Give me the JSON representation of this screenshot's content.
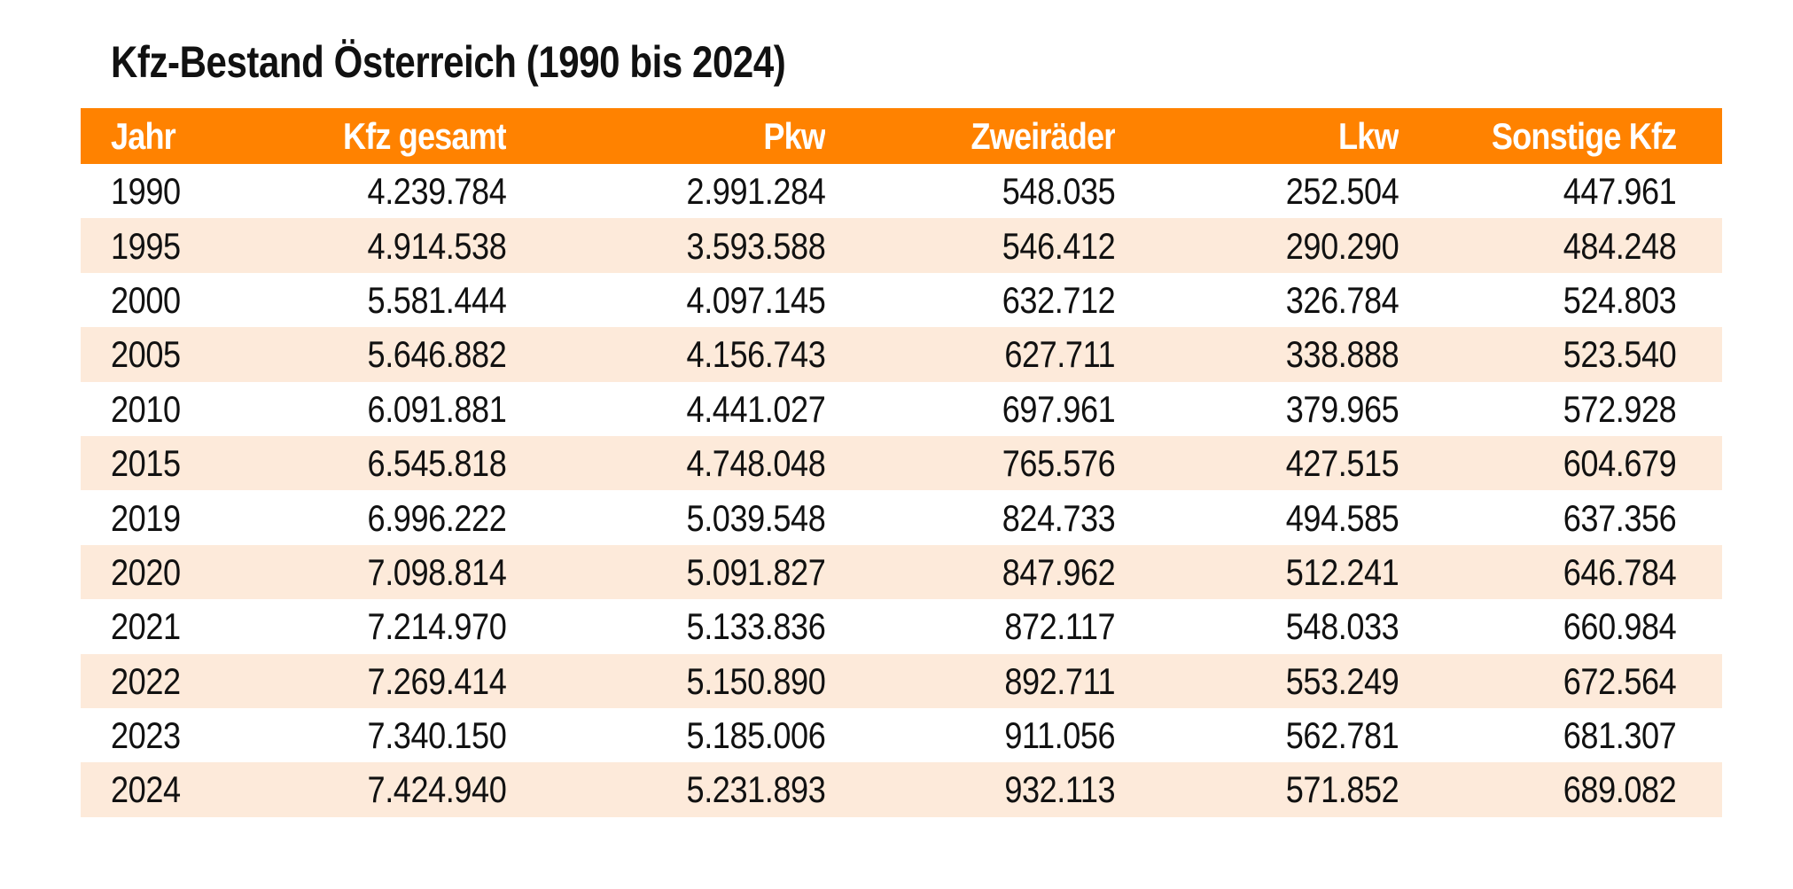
{
  "title": "Kfz-Bestand Österreich (1990 bis 2024)",
  "colors": {
    "header_background": "#ff8200",
    "header_text": "#ffffff",
    "stripe_background": "#fdeada",
    "body_text": "#111111"
  },
  "table": {
    "headers": [
      "Jahr",
      "Kfz gesamt",
      "Pkw",
      "Zweiräder",
      "Lkw",
      "Sonstige Kfz"
    ],
    "rows": [
      [
        "1990",
        "4.239.784",
        "2.991.284",
        "548.035",
        "252.504",
        "447.961"
      ],
      [
        "1995",
        "4.914.538",
        "3.593.588",
        "546.412",
        "290.290",
        "484.248"
      ],
      [
        "2000",
        "5.581.444",
        "4.097.145",
        "632.712",
        "326.784",
        "524.803"
      ],
      [
        "2005",
        "5.646.882",
        "4.156.743",
        "627.711",
        "338.888",
        "523.540"
      ],
      [
        "2010",
        "6.091.881",
        "4.441.027",
        "697.961",
        "379.965",
        "572.928"
      ],
      [
        "2015",
        "6.545.818",
        "4.748.048",
        "765.576",
        "427.515",
        "604.679"
      ],
      [
        "2019",
        "6.996.222",
        "5.039.548",
        "824.733",
        "494.585",
        "637.356"
      ],
      [
        "2020",
        "7.098.814",
        "5.091.827",
        "847.962",
        "512.241",
        "646.784"
      ],
      [
        "2021",
        "7.214.970",
        "5.133.836",
        "872.117",
        "548.033",
        "660.984"
      ],
      [
        "2022",
        "7.269.414",
        "5.150.890",
        "892.711",
        "553.249",
        "672.564"
      ],
      [
        "2023",
        "7.340.150",
        "5.185.006",
        "911.056",
        "562.781",
        "681.307"
      ],
      [
        "2024",
        "7.424.940",
        "5.231.893",
        "932.113",
        "571.852",
        "689.082"
      ]
    ]
  }
}
